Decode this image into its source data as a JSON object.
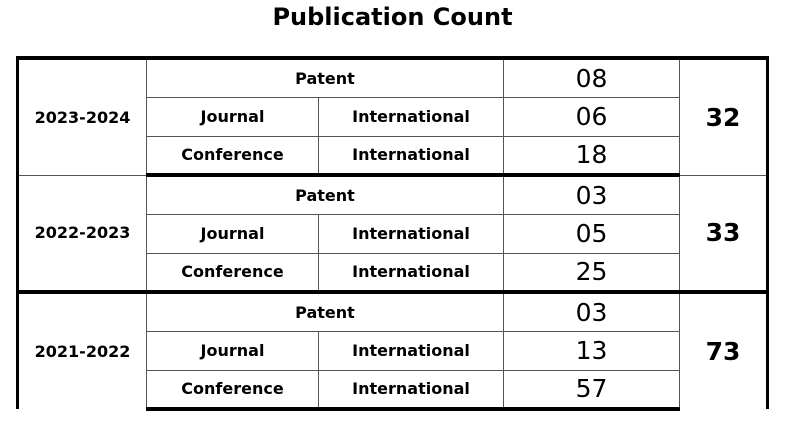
{
  "title": "Publication Count",
  "groups": [
    {
      "year": "2023-2024",
      "total": "32",
      "rows": [
        {
          "type": "Patent",
          "scope": "",
          "count": "08"
        },
        {
          "type": "Journal",
          "scope": "International",
          "count": "06"
        },
        {
          "type": "Conference",
          "scope": "International",
          "count": "18"
        }
      ]
    },
    {
      "year": "2022-2023",
      "total": "33",
      "rows": [
        {
          "type": "Patent",
          "scope": "",
          "count": "03"
        },
        {
          "type": "Journal",
          "scope": "International",
          "count": "05"
        },
        {
          "type": "Conference",
          "scope": "International",
          "count": "25"
        }
      ]
    },
    {
      "year": "2021-2022",
      "total": "73",
      "rows": [
        {
          "type": "Patent",
          "scope": "",
          "count": "03"
        },
        {
          "type": "Journal",
          "scope": "International",
          "count": "13"
        },
        {
          "type": "Conference",
          "scope": "International",
          "count": "57"
        }
      ]
    }
  ]
}
